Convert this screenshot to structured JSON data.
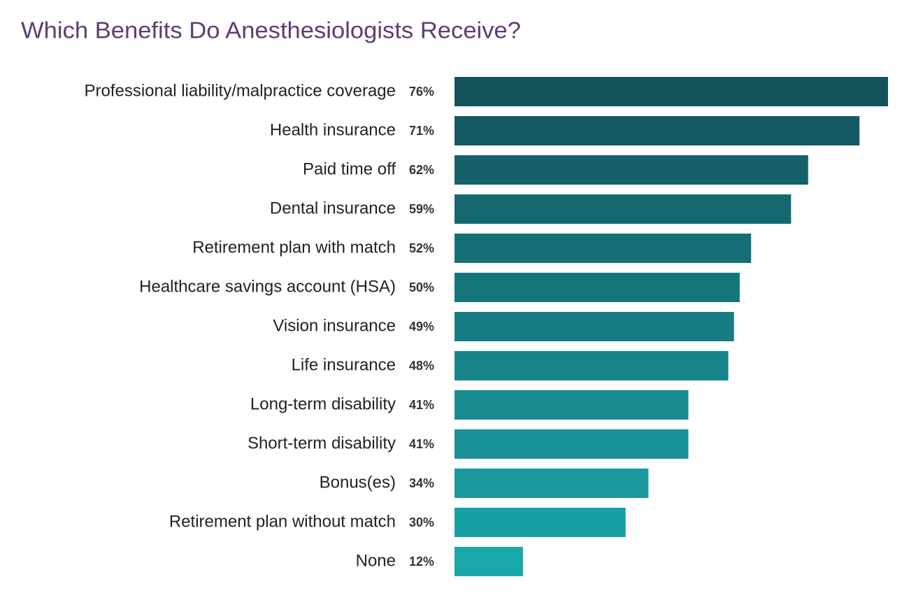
{
  "chart_data": {
    "type": "hbar",
    "title": "Which Benefits Do Anesthesiologists Receive?",
    "categories": [
      "Professional liability/malpractice coverage",
      "Health insurance",
      "Paid time off",
      "Dental insurance",
      "Retirement plan with match",
      "Healthcare savings account (HSA)",
      "Vision insurance",
      "Life insurance",
      "Long-term disability",
      "Short-term disability",
      "Bonus(es)",
      "Retirement plan without match",
      "None"
    ],
    "values": [
      76,
      71,
      62,
      59,
      52,
      50,
      49,
      48,
      41,
      41,
      34,
      30,
      12
    ],
    "value_labels": [
      "76%",
      "71%",
      "62%",
      "59%",
      "52%",
      "50%",
      "49%",
      "48%",
      "41%",
      "41%",
      "34%",
      "30%",
      "12%"
    ],
    "colors": [
      "#14525c",
      "#145a63",
      "#15616a",
      "#156870",
      "#166f77",
      "#16767d",
      "#177d84",
      "#17848a",
      "#188b91",
      "#189297",
      "#19999e",
      "#19a0a4",
      "#1aa7aa"
    ]
  }
}
